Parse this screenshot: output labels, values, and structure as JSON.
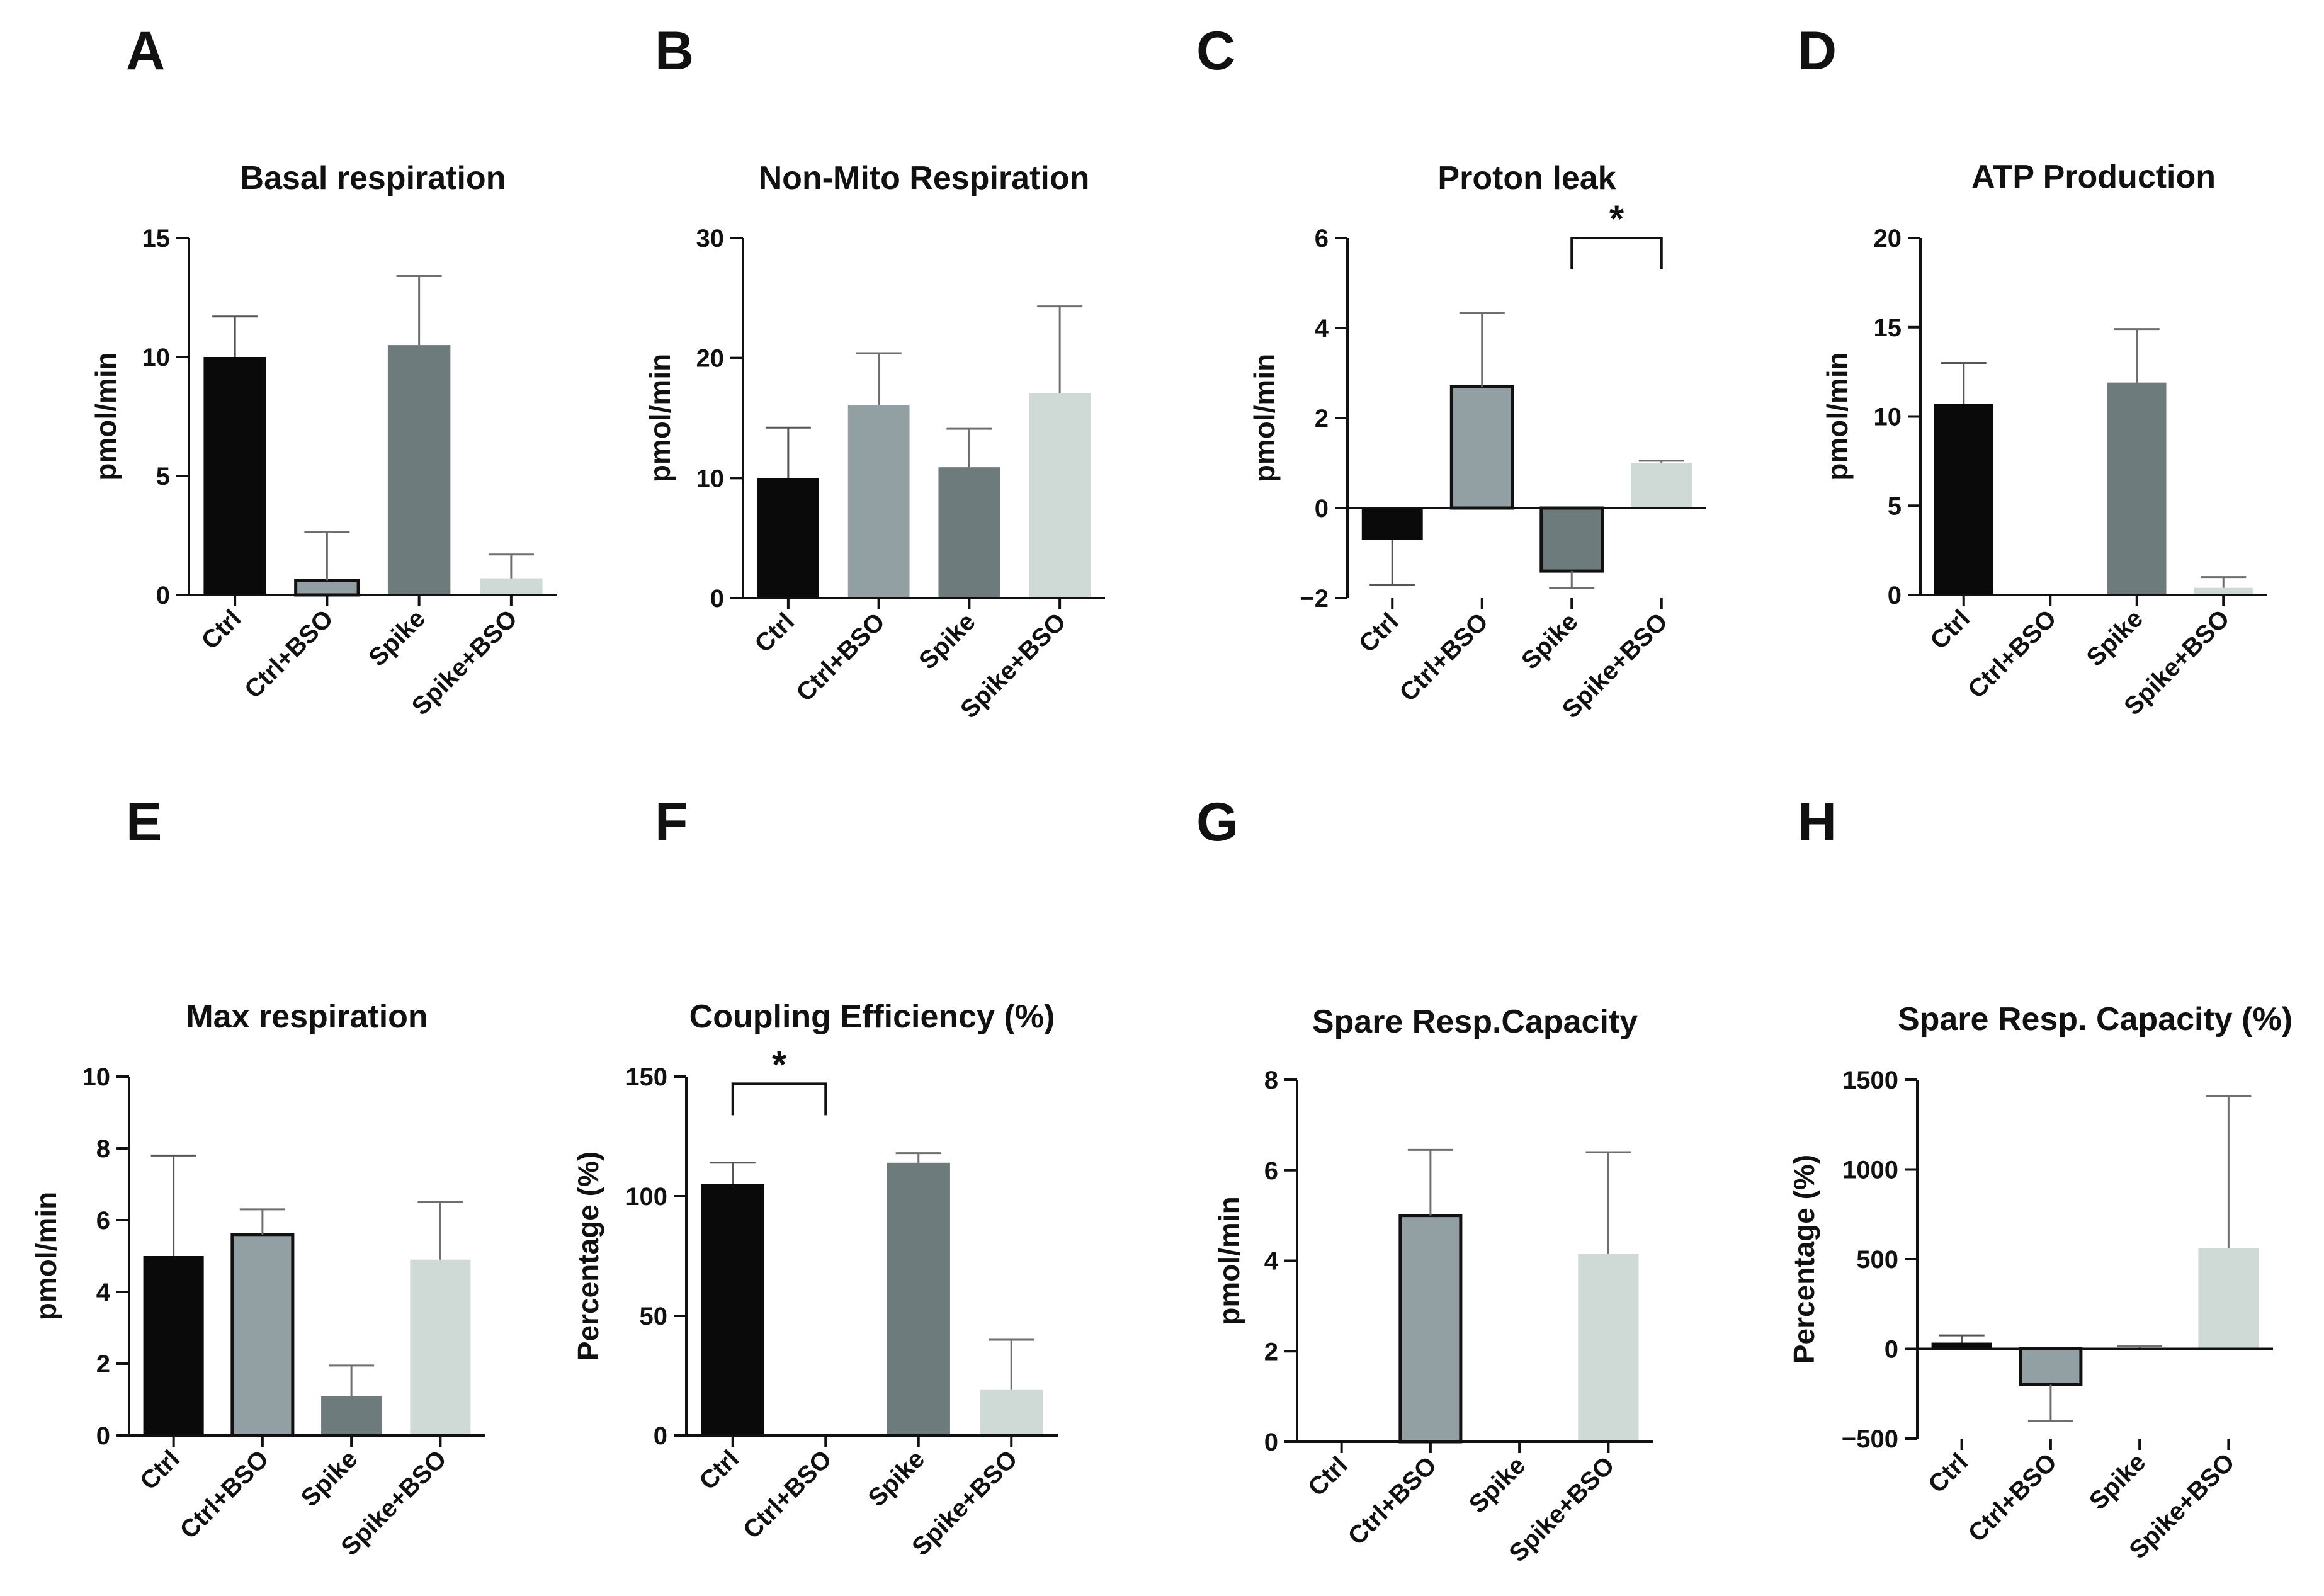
{
  "figure": {
    "panels": [
      "A",
      "B",
      "C",
      "D",
      "E",
      "F",
      "G",
      "H"
    ]
  },
  "chart_data": [
    {
      "panel": "A",
      "type": "bar",
      "title": "Basal respiration",
      "xlabel": "",
      "ylabel": "pmol/min",
      "categories": [
        "Ctrl",
        "Ctrl+BSO",
        "Spike",
        "Spike+BSO"
      ],
      "values": [
        10.0,
        0.6,
        10.5,
        0.7
      ],
      "errors": [
        1.7,
        2.05,
        2.9,
        1.0
      ],
      "ylim": [
        0,
        15
      ],
      "yticks": [
        0,
        5,
        10,
        15
      ],
      "ytick_labels": [
        "0",
        "5",
        "10",
        "15"
      ],
      "colors": [
        "#0a0a0a",
        "#929fa3",
        "#6d7b7c",
        "#cfd9d6"
      ],
      "outlined": [
        false,
        true,
        false,
        false
      ]
    },
    {
      "panel": "B",
      "type": "bar",
      "title": "Non-Mito Respiration",
      "xlabel": "",
      "ylabel": "pmol/min",
      "categories": [
        "Ctrl",
        "Ctrl+BSO",
        "Spike",
        "Spike+BSO"
      ],
      "values": [
        10.0,
        16.1,
        10.9,
        17.1
      ],
      "errors": [
        4.2,
        4.3,
        3.2,
        7.2
      ],
      "ylim": [
        0,
        30
      ],
      "yticks": [
        0,
        10,
        20,
        30
      ],
      "ytick_labels": [
        "0",
        "10",
        "20",
        "30"
      ],
      "colors": [
        "#0a0a0a",
        "#929fa3",
        "#6d7b7c",
        "#cfd9d6"
      ],
      "outlined": [
        false,
        false,
        false,
        false
      ]
    },
    {
      "panel": "C",
      "type": "bar",
      "title": "Proton leak",
      "xlabel": "",
      "ylabel": "pmol/min",
      "categories": [
        "Ctrl",
        "Ctrl+BSO",
        "Spike",
        "Spike+BSO"
      ],
      "values": [
        -0.7,
        2.7,
        -1.4,
        1.0
      ],
      "errors": [
        1.0,
        1.63,
        0.38,
        0.05
      ],
      "ylim": [
        -2,
        6
      ],
      "yticks": [
        -2,
        0,
        2,
        4,
        6
      ],
      "ytick_labels": [
        "−2",
        "0",
        "2",
        "4",
        "6"
      ],
      "colors": [
        "#0a0a0a",
        "#929fa3",
        "#6d7b7c",
        "#cfd9d6"
      ],
      "outlined": [
        false,
        true,
        true,
        false
      ],
      "significance": [
        {
          "from": 2,
          "to": 3,
          "label": "*",
          "y": 6.0
        }
      ]
    },
    {
      "panel": "D",
      "type": "bar",
      "title": "ATP Production",
      "xlabel": "",
      "ylabel": "pmol/min",
      "categories": [
        "Ctrl",
        "Ctrl+BSO",
        "Spike",
        "Spike+BSO"
      ],
      "values": [
        10.7,
        0.0,
        11.9,
        0.4
      ],
      "errors": [
        2.3,
        0.0,
        3.0,
        0.6
      ],
      "ylim": [
        0,
        20
      ],
      "yticks": [
        0,
        5,
        10,
        15,
        20
      ],
      "ytick_labels": [
        "0",
        "5",
        "10",
        "15",
        "20"
      ],
      "colors": [
        "#0a0a0a",
        "#929fa3",
        "#6d7b7c",
        "#cfd9d6"
      ],
      "outlined": [
        false,
        false,
        false,
        false
      ]
    },
    {
      "panel": "E",
      "type": "bar",
      "title": "Max respiration",
      "xlabel": "",
      "ylabel": "pmol/min",
      "categories": [
        "Ctrl",
        "Ctrl+BSO",
        "Spike",
        "Spike+BSO"
      ],
      "values": [
        5.0,
        5.6,
        1.1,
        4.9
      ],
      "errors": [
        2.8,
        0.7,
        0.85,
        1.6
      ],
      "ylim": [
        0,
        10
      ],
      "yticks": [
        0,
        2,
        4,
        6,
        8,
        10
      ],
      "ytick_labels": [
        "0",
        "2",
        "4",
        "6",
        "8",
        "10"
      ],
      "colors": [
        "#0a0a0a",
        "#929fa3",
        "#6d7b7c",
        "#cfd9d6"
      ],
      "outlined": [
        false,
        true,
        false,
        false
      ]
    },
    {
      "panel": "F",
      "type": "bar",
      "title": "Coupling Efficiency (%)",
      "xlabel": "",
      "ylabel": "Percentage (%)",
      "categories": [
        "Ctrl",
        "Ctrl+BSO",
        "Spike",
        "Spike+BSO"
      ],
      "values": [
        105,
        0,
        114,
        19
      ],
      "errors": [
        9,
        0,
        4,
        21
      ],
      "ylim": [
        0,
        150
      ],
      "yticks": [
        0,
        50,
        100,
        150
      ],
      "ytick_labels": [
        "0",
        "50",
        "100",
        "150"
      ],
      "colors": [
        "#0a0a0a",
        "#929fa3",
        "#6d7b7c",
        "#cfd9d6"
      ],
      "outlined": [
        false,
        false,
        false,
        false
      ],
      "significance": [
        {
          "from": 0,
          "to": 1,
          "label": "*",
          "y": 147
        }
      ]
    },
    {
      "panel": "G",
      "type": "bar",
      "title": "Spare Resp.Capacity",
      "xlabel": "",
      "ylabel": "pmol/min",
      "categories": [
        "Ctrl",
        "Ctrl+BSO",
        "Spike",
        "Spike+BSO"
      ],
      "values": [
        0,
        5.0,
        0,
        4.15
      ],
      "errors": [
        0,
        1.45,
        0,
        2.25
      ],
      "ylim": [
        0,
        8
      ],
      "yticks": [
        0,
        2,
        4,
        6,
        8
      ],
      "ytick_labels": [
        "0",
        "2",
        "4",
        "6",
        "8"
      ],
      "colors": [
        "#0a0a0a",
        "#929fa3",
        "#6d7b7c",
        "#cfd9d6"
      ],
      "outlined": [
        false,
        true,
        false,
        false
      ]
    },
    {
      "panel": "H",
      "type": "bar",
      "title": "Spare Resp. Capacity (%)",
      "xlabel": "",
      "ylabel": "Percentage (%)",
      "categories": [
        "Ctrl",
        "Ctrl+BSO",
        "Spike",
        "Spike+BSO"
      ],
      "values": [
        35,
        -200,
        5,
        560
      ],
      "errors": [
        40,
        200,
        10,
        850
      ],
      "ylim": [
        -500,
        1500
      ],
      "yticks": [
        -500,
        0,
        500,
        1000,
        1500
      ],
      "ytick_labels": [
        "−500",
        "0",
        "500",
        "1000",
        "1500"
      ],
      "colors": [
        "#0a0a0a",
        "#929fa3",
        "#6d7b7c",
        "#cfd9d6"
      ],
      "outlined": [
        false,
        true,
        false,
        false
      ]
    }
  ]
}
